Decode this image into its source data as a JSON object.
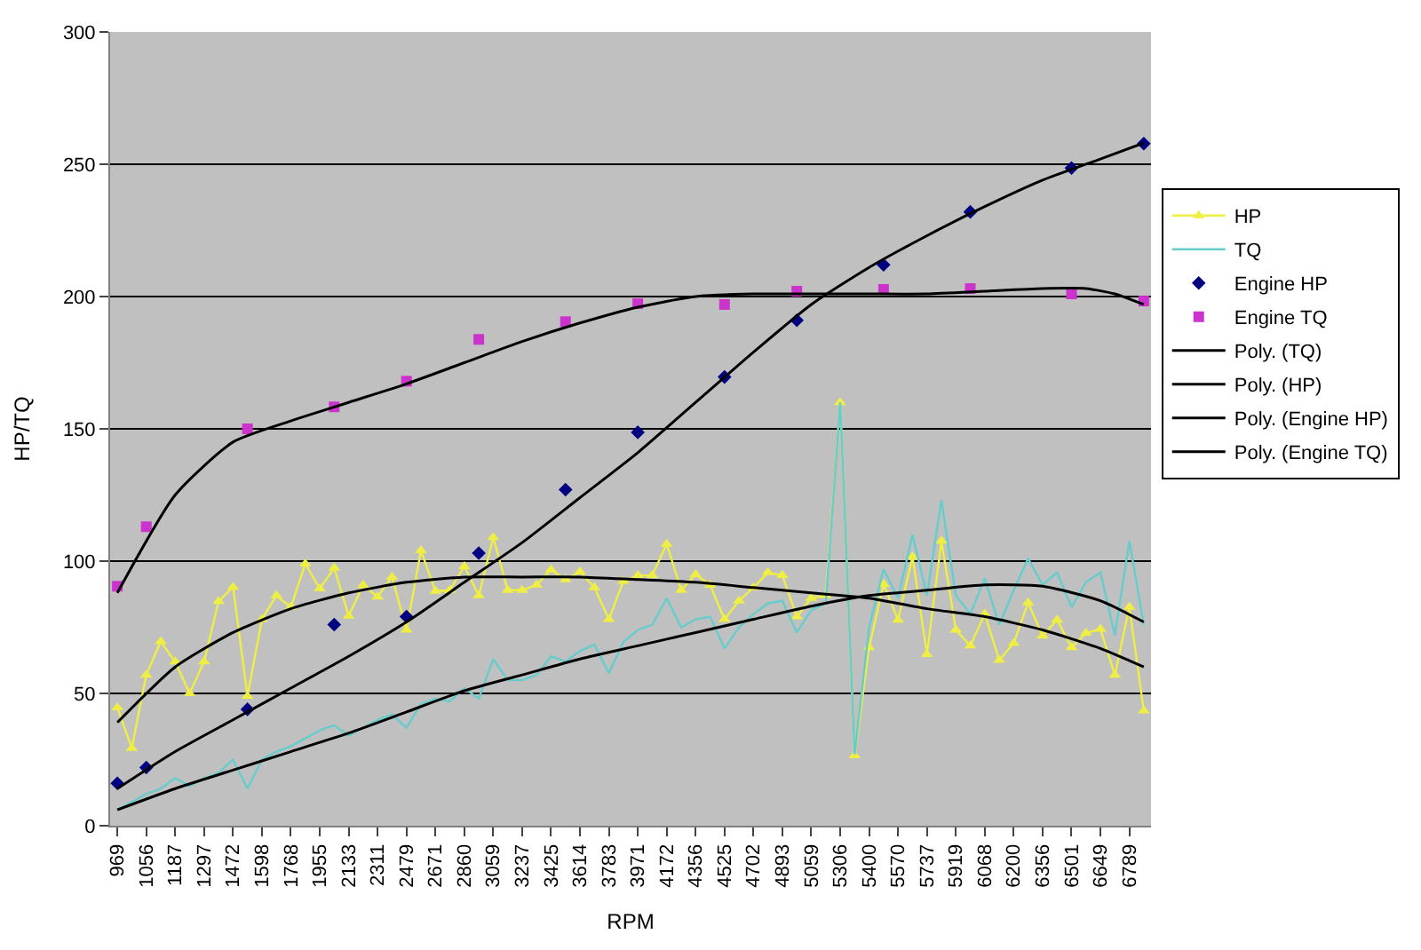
{
  "chart_data": {
    "type": "line",
    "xlabel": "RPM",
    "ylabel": "HP/TQ",
    "categories": [
      "969",
      null,
      "1056",
      null,
      "1187",
      null,
      "1297",
      null,
      "1472",
      null,
      "1598",
      null,
      "1768",
      null,
      "1955",
      null,
      "2133",
      null,
      "2311",
      null,
      "2479",
      null,
      "2671",
      null,
      "2860",
      null,
      "3059",
      null,
      "3237",
      null,
      "3425",
      null,
      "3614",
      null,
      "3783",
      null,
      "3971",
      null,
      "4172",
      null,
      "4356",
      null,
      "4525",
      null,
      "4702",
      null,
      "4893",
      null,
      "5059",
      null,
      "5306",
      null,
      "5400",
      null,
      "5570",
      null,
      "5737",
      null,
      "5919",
      null,
      "6068",
      null,
      "6200",
      null,
      "6356",
      null,
      "6501",
      null,
      "6649",
      null,
      "6789",
      null
    ],
    "ylim": [
      0,
      300
    ],
    "yticks": [
      0,
      50,
      100,
      150,
      200,
      250,
      300
    ],
    "grid": "y",
    "legend": "right",
    "series": [
      {
        "name": "HP",
        "color": "#eeee44",
        "marker": "triangle",
        "values": [
          44.6,
          29.3,
          57,
          69.6,
          62,
          50,
          62,
          84.8,
          90.2,
          49,
          78,
          87,
          82.6,
          99,
          89.6,
          97.4,
          79.3,
          90.9,
          86.5,
          94,
          74,
          104,
          88.7,
          89,
          98,
          87,
          109,
          89,
          89,
          91,
          96.7,
          93,
          96,
          90,
          78,
          92.4,
          94.6,
          94.6,
          106.5,
          89,
          95,
          91,
          78,
          85,
          90,
          95.7,
          94.6,
          79,
          86,
          87,
          160,
          26.5,
          67.4,
          91.3,
          77.8,
          101.7,
          64.8,
          107.6,
          74,
          68,
          80,
          62.6,
          69,
          84.3,
          71.7,
          77.8,
          67.4,
          72.8,
          74.3,
          57,
          82.6,
          43.5
        ]
      },
      {
        "name": "TQ",
        "color": "#66cccc",
        "marker": "none",
        "values": [
          6,
          9,
          12,
          14,
          18,
          15,
          18,
          20,
          25,
          14,
          25,
          28,
          30,
          33,
          36,
          38,
          34,
          37,
          40,
          42,
          37,
          46,
          48,
          47,
          52,
          48,
          63,
          55,
          55,
          57,
          64,
          62,
          66,
          68.5,
          57.6,
          69.5,
          74,
          76,
          86,
          75,
          78,
          79,
          67,
          75,
          80,
          84,
          85,
          73,
          81.5,
          84,
          160,
          27,
          75,
          97,
          86,
          110,
          87,
          123,
          87,
          80,
          93.5,
          76,
          89,
          101,
          91,
          95.7,
          82.6,
          92,
          95.7,
          72,
          107.6,
          76
        ]
      },
      {
        "name": "Engine HP",
        "type": "scatter",
        "color": "#000080",
        "marker": "diamond",
        "values": [
          16,
          null,
          22,
          null,
          null,
          null,
          null,
          null,
          null,
          44,
          null,
          null,
          null,
          null,
          null,
          76,
          null,
          null,
          null,
          null,
          79,
          null,
          null,
          null,
          null,
          103,
          null,
          null,
          null,
          null,
          null,
          127,
          null,
          null,
          null,
          null,
          148.7,
          null,
          null,
          null,
          null,
          null,
          169.6,
          null,
          null,
          null,
          null,
          191,
          null,
          null,
          null,
          null,
          null,
          212,
          null,
          null,
          null,
          null,
          null,
          232,
          null,
          null,
          null,
          null,
          null,
          null,
          248.6,
          null,
          null,
          null,
          null,
          257.8
        ]
      },
      {
        "name": "Engine TQ",
        "type": "scatter",
        "color": "#cc33cc",
        "marker": "square",
        "values": [
          90.5,
          null,
          113,
          null,
          null,
          null,
          null,
          null,
          null,
          150,
          null,
          null,
          null,
          null,
          null,
          158.3,
          null,
          null,
          null,
          null,
          168,
          null,
          null,
          null,
          null,
          183.8,
          null,
          null,
          null,
          null,
          null,
          190.5,
          null,
          null,
          null,
          null,
          197.3,
          null,
          null,
          null,
          null,
          null,
          197,
          null,
          null,
          null,
          null,
          202,
          null,
          null,
          null,
          null,
          null,
          202.7,
          null,
          null,
          null,
          null,
          null,
          203,
          null,
          null,
          null,
          null,
          null,
          null,
          201,
          null,
          null,
          null,
          null,
          198.3
        ]
      },
      {
        "name": "Poly. (TQ)",
        "color": "#000000",
        "marker": "none",
        "values": [
          6,
          null,
          null,
          null,
          14,
          null,
          null,
          null,
          21,
          null,
          null,
          null,
          28,
          null,
          null,
          null,
          35,
          null,
          null,
          null,
          43,
          null,
          null,
          null,
          51,
          null,
          null,
          null,
          57,
          null,
          null,
          null,
          63,
          null,
          null,
          null,
          68,
          null,
          null,
          null,
          73,
          null,
          null,
          null,
          78,
          null,
          null,
          null,
          83,
          null,
          null,
          null,
          87,
          null,
          null,
          null,
          89,
          null,
          null,
          null,
          91,
          null,
          null,
          null,
          90.5,
          null,
          null,
          null,
          85,
          null,
          null,
          77
        ]
      },
      {
        "name": "Poly. (HP)",
        "color": "#000000",
        "marker": "none",
        "values": [
          39,
          null,
          null,
          null,
          60,
          null,
          null,
          null,
          73,
          null,
          null,
          null,
          82,
          null,
          null,
          null,
          88,
          null,
          null,
          null,
          92,
          null,
          null,
          null,
          94,
          null,
          null,
          null,
          94,
          null,
          null,
          null,
          94,
          null,
          null,
          null,
          93,
          null,
          null,
          null,
          92,
          null,
          null,
          null,
          90,
          null,
          null,
          null,
          88,
          null,
          null,
          null,
          86,
          null,
          null,
          null,
          82,
          null,
          null,
          null,
          79,
          null,
          null,
          null,
          74,
          null,
          null,
          null,
          67,
          null,
          null,
          60
        ]
      },
      {
        "name": "Poly. (Engine HP)",
        "color": "#000000",
        "marker": "none",
        "values": [
          14,
          null,
          null,
          null,
          28,
          null,
          null,
          null,
          40,
          null,
          null,
          null,
          52,
          null,
          null,
          null,
          64,
          null,
          null,
          null,
          77,
          null,
          null,
          null,
          92,
          null,
          null,
          null,
          107,
          null,
          null,
          null,
          124,
          null,
          null,
          null,
          141,
          null,
          null,
          null,
          160,
          null,
          null,
          null,
          179,
          null,
          null,
          null,
          197,
          null,
          null,
          null,
          211,
          null,
          null,
          null,
          223,
          null,
          null,
          null,
          234,
          null,
          null,
          null,
          244,
          null,
          null,
          null,
          252,
          null,
          null,
          258
        ]
      },
      {
        "name": "Poly. (Engine TQ)",
        "color": "#000000",
        "marker": "none",
        "values": [
          88,
          null,
          null,
          null,
          125,
          null,
          null,
          null,
          145,
          null,
          null,
          null,
          153,
          null,
          null,
          null,
          160,
          null,
          null,
          null,
          167,
          null,
          null,
          null,
          175,
          null,
          null,
          null,
          183,
          null,
          null,
          null,
          190,
          null,
          null,
          null,
          196,
          null,
          null,
          null,
          200,
          null,
          null,
          null,
          201,
          null,
          null,
          null,
          201,
          null,
          null,
          null,
          201,
          null,
          null,
          null,
          201,
          null,
          null,
          null,
          202,
          null,
          null,
          null,
          203,
          null,
          null,
          203,
          null,
          201,
          null,
          197
        ]
      }
    ]
  }
}
